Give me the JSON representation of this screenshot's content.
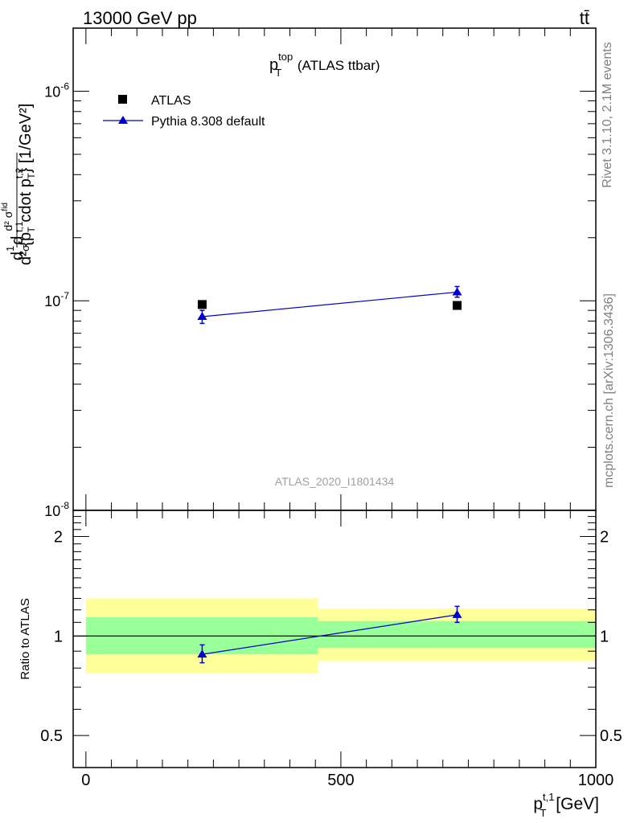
{
  "header": {
    "left": "13000 GeV pp",
    "right": "tt̄"
  },
  "side_labels": {
    "rivet": "Rivet 3.1.10,  2.1M events",
    "mcplots": "mcplots.cern.ch [arXiv:1306.3436]"
  },
  "colors": {
    "atlas": "#000000",
    "pythia": "#0000cc",
    "band_inner": "#99ff99",
    "band_outer": "#ffff99"
  },
  "chart_data": [
    {
      "type": "scatter",
      "title": "p_T^top (ATLAS ttbar)",
      "watermark": "ATLAS_2020_I1801434",
      "ylabel": "d1/σ d^2σ^fid / d^2 {p_T^t,1 cdot p_T^t,2} [1/GeV^2]",
      "yscale": "log",
      "xlim": [
        -25,
        1000
      ],
      "ylim": [
        1e-08,
        2e-06
      ],
      "y_tick_labels": [
        "10^-8",
        "10^-7",
        "10^-6"
      ],
      "legend_position": "top-left",
      "series": [
        {
          "name": "ATLAS",
          "marker": "square",
          "points": [
            {
              "x": 228,
              "y": 9.6e-08
            },
            {
              "x": 728,
              "y": 9.5e-08
            }
          ]
        },
        {
          "name": "Pythia 8.308 default",
          "marker": "triangle",
          "line": true,
          "points": [
            {
              "x": 228,
              "y": 8.4e-08,
              "ylo": 7.8e-08,
              "yhi": 9e-08
            },
            {
              "x": 728,
              "y": 1.1e-07,
              "ylo": 1.04e-07,
              "yhi": 1.17e-07
            }
          ]
        }
      ]
    },
    {
      "type": "scatter",
      "ylabel": "Ratio to ATLAS",
      "xlabel": "p_T^t,1 [GeV]",
      "xlim": [
        -25,
        1000
      ],
      "ylim": [
        0.4,
        2.4
      ],
      "y_tick_labels": [
        "0.5",
        "1",
        "2"
      ],
      "x_tick_labels": [
        "0",
        "500",
        "1000"
      ],
      "bands": [
        {
          "x0": 0,
          "x1": 455,
          "inner": [
            0.88,
            1.14
          ],
          "outer": [
            0.77,
            1.3
          ]
        },
        {
          "x0": 455,
          "x1": 1000,
          "inner": [
            0.92,
            1.11
          ],
          "outer": [
            0.84,
            1.21
          ]
        }
      ],
      "series": [
        {
          "name": "Pythia 8.308 default",
          "points": [
            {
              "x": 228,
              "y": 0.88,
              "ylo": 0.83,
              "yhi": 0.94
            },
            {
              "x": 728,
              "y": 1.16,
              "ylo": 1.1,
              "yhi": 1.23
            }
          ]
        }
      ]
    }
  ]
}
